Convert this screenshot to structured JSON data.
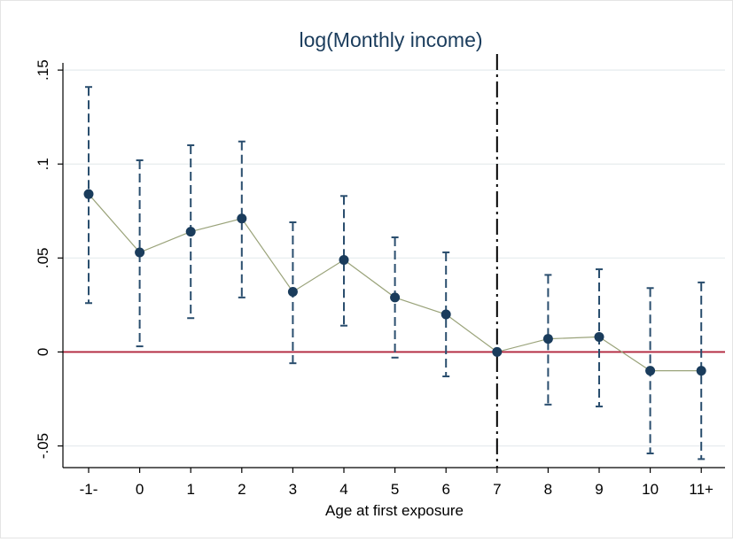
{
  "chart_data": {
    "type": "scatter",
    "title": "log(Monthly income)",
    "xlabel": "Age at first exposure",
    "ylabel": "",
    "categories": [
      "-1-",
      "0",
      "1",
      "2",
      "3",
      "4",
      "5",
      "6",
      "7",
      "8",
      "9",
      "10",
      "11+"
    ],
    "y_ticks": [
      {
        "value": 0.15,
        "label": ".15"
      },
      {
        "value": 0.1,
        "label": ".1"
      },
      {
        "value": 0.05,
        "label": ".05"
      },
      {
        "value": 0,
        "label": "0"
      },
      {
        "value": -0.05,
        "label": "-.05"
      }
    ],
    "ylim": [
      -0.063,
      0.151
    ],
    "estimates": [
      0.084,
      0.053,
      0.064,
      0.071,
      0.032,
      0.049,
      0.029,
      0.02,
      0.0,
      0.007,
      0.008,
      -0.01,
      -0.01
    ],
    "ci_lower": [
      0.026,
      0.003,
      0.018,
      0.029,
      -0.006,
      0.014,
      -0.003,
      -0.013,
      null,
      -0.028,
      -0.029,
      -0.054,
      -0.057
    ],
    "ci_upper": [
      0.141,
      0.102,
      0.11,
      0.112,
      0.069,
      0.083,
      0.061,
      0.053,
      null,
      0.041,
      0.044,
      0.034,
      0.037
    ],
    "reference_line_y": 0,
    "vertical_line_category": "7",
    "grid": true,
    "colors": {
      "point": "#1a3c5c",
      "ci": "#2a4e6e",
      "connector": "#9aa37a",
      "zero_line": "#b0243c",
      "vline": "#000000",
      "grid": "#e6ebee",
      "title": "#1a3c5c"
    }
  }
}
